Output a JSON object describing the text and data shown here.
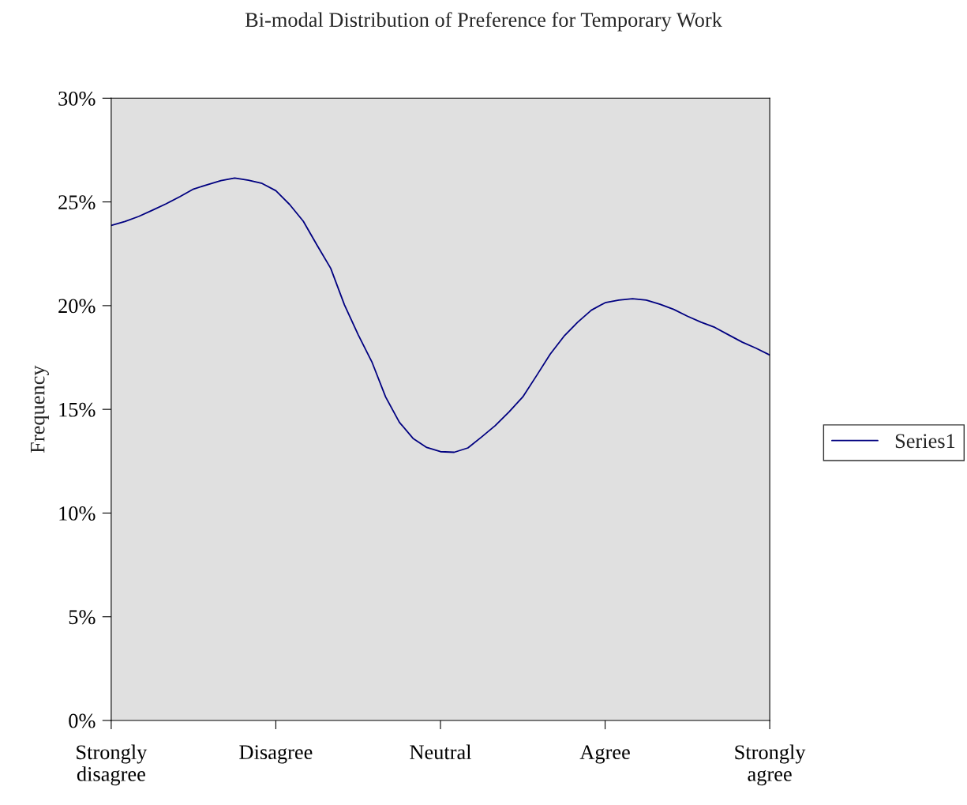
{
  "chart_data": {
    "type": "line",
    "title": "Bi-modal Distribution of Preference for Temporary Work",
    "ylabel": "Frequency",
    "categories": [
      "Strongly\ndisagree",
      null,
      null,
      null,
      null,
      null,
      null,
      null,
      null,
      null,
      null,
      null,
      "Disagree",
      null,
      null,
      null,
      null,
      null,
      null,
      null,
      null,
      null,
      null,
      null,
      "Neutral",
      null,
      null,
      null,
      null,
      null,
      null,
      null,
      null,
      null,
      null,
      null,
      "Agree",
      null,
      null,
      null,
      null,
      null,
      null,
      null,
      null,
      null,
      null,
      null,
      "Strongly\nagree"
    ],
    "series": [
      {
        "name": "Series1",
        "color": "#000080",
        "values": [
          23.87,
          24.06,
          24.3,
          24.6,
          24.91,
          25.25,
          25.62,
          25.83,
          26.03,
          26.15,
          26.05,
          25.89,
          25.54,
          24.88,
          24.07,
          22.92,
          21.8,
          20.04,
          18.6,
          17.29,
          15.6,
          14.38,
          13.6,
          13.16,
          12.96,
          12.93,
          13.14,
          13.67,
          14.22,
          14.88,
          15.6,
          16.62,
          17.66,
          18.52,
          19.2,
          19.78,
          20.14,
          20.27,
          20.33,
          20.27,
          20.07,
          19.82,
          19.49,
          19.2,
          18.95,
          18.59,
          18.24,
          17.95,
          17.62
        ]
      }
    ],
    "ylim": [
      0,
      30
    ],
    "yticks": [
      {
        "value": 0,
        "label": "0%"
      },
      {
        "value": 5,
        "label": "5%"
      },
      {
        "value": 10,
        "label": "10%"
      },
      {
        "value": 15,
        "label": "15%"
      },
      {
        "value": 20,
        "label": "20%"
      },
      {
        "value": 25,
        "label": "25%"
      },
      {
        "value": 30,
        "label": "30%"
      }
    ],
    "grid": false,
    "legend": "right",
    "marker": "none",
    "line_style": "solid"
  }
}
